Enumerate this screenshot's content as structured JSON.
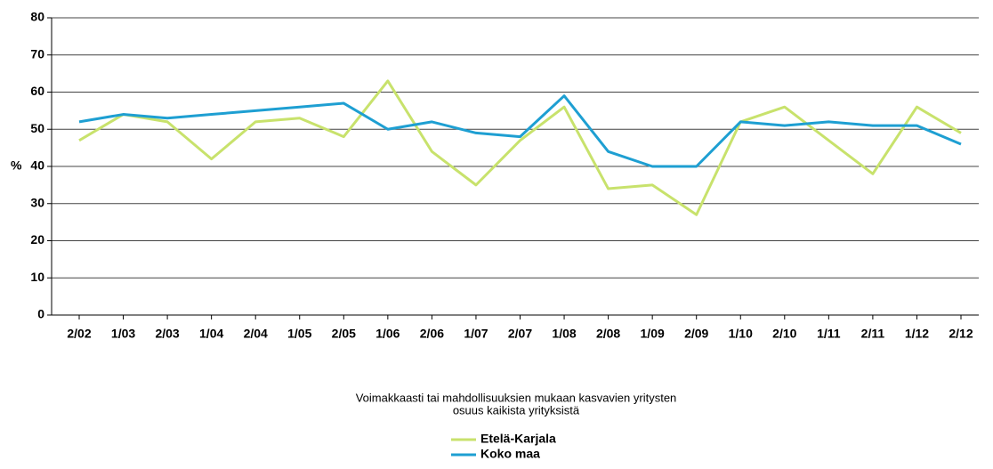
{
  "chart_data": {
    "type": "line",
    "y_label": "%",
    "caption": [
      "Voimakkaasti tai mahdollisuuksien mukaan kasvavien yritysten",
      "osuus kaikista yrityksistä"
    ],
    "categories": [
      "2/02",
      "1/03",
      "2/03",
      "1/04",
      "2/04",
      "1/05",
      "2/05",
      "1/06",
      "2/06",
      "1/07",
      "2/07",
      "1/08",
      "2/08",
      "1/09",
      "2/09",
      "1/10",
      "2/10",
      "1/11",
      "2/11",
      "1/12",
      "2/12"
    ],
    "series": [
      {
        "name": "Etelä-Karjala",
        "color": "#c8e26c",
        "values": [
          47,
          54,
          52,
          42,
          52,
          53,
          48,
          63,
          44,
          35,
          47,
          56,
          34,
          35,
          27,
          52,
          56,
          47,
          38,
          56,
          49
        ]
      },
      {
        "name": "Koko maa",
        "color": "#1e9fd2",
        "values": [
          52,
          54,
          53,
          54,
          55,
          56,
          57,
          50,
          52,
          49,
          48,
          59,
          44,
          40,
          40,
          52,
          51,
          52,
          51,
          51,
          46
        ]
      }
    ],
    "ylim": [
      0,
      80
    ],
    "yticks": [
      0,
      10,
      20,
      30,
      40,
      50,
      60,
      70,
      80
    ],
    "grid": true
  }
}
